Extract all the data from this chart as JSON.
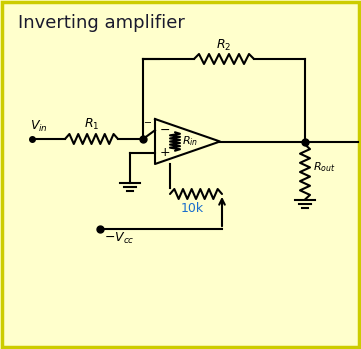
{
  "title": "Inverting amplifier",
  "title_color": "#1a1a2e",
  "title_fontsize": 13,
  "bg_color": "#ffffcc",
  "border_color": "#cccc00",
  "line_color": "#000000",
  "blue_color": "#1a6ecc",
  "label_10k": "10k",
  "label_Vcc": "-V_{cc}"
}
